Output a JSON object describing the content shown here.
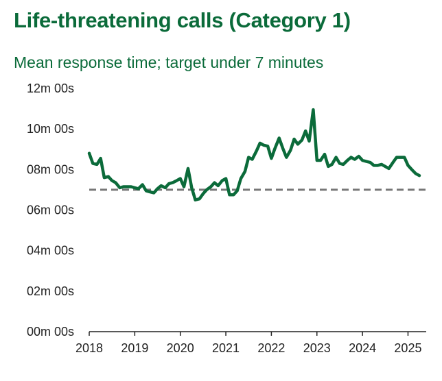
{
  "title": "Life-threatening calls (Category 1)",
  "subtitle": "Mean response time; target under 7 minutes",
  "colors": {
    "title": "#0b6b3a",
    "line": "#0b6b3a",
    "target": "#777777",
    "axis": "#222222"
  },
  "chart_data": {
    "type": "line",
    "title": "Life-threatening calls (Category 1)",
    "subtitle": "Mean response time; target under 7 minutes",
    "xlabel": "",
    "ylabel": "",
    "y_unit": "minutes",
    "ylim": [
      0,
      12
    ],
    "y_ticks": [
      {
        "value": 0,
        "label": "00m 00s"
      },
      {
        "value": 2,
        "label": "02m 00s"
      },
      {
        "value": 4,
        "label": "04m 00s"
      },
      {
        "value": 6,
        "label": "06m 00s"
      },
      {
        "value": 8,
        "label": "08m 00s"
      },
      {
        "value": 10,
        "label": "10m 00s"
      },
      {
        "value": 12,
        "label": "12m 00s"
      }
    ],
    "xlim": [
      2018,
      2025.4
    ],
    "x_ticks": [
      {
        "value": 2018,
        "label": "2018"
      },
      {
        "value": 2019,
        "label": "2019"
      },
      {
        "value": 2020,
        "label": "2020"
      },
      {
        "value": 2021,
        "label": "2021"
      },
      {
        "value": 2022,
        "label": "2022"
      },
      {
        "value": 2023,
        "label": "2023"
      },
      {
        "value": 2024,
        "label": "2024"
      },
      {
        "value": 2025,
        "label": "2025"
      }
    ],
    "grid": false,
    "target": 7,
    "series": [
      {
        "x": [
          2018.0,
          2018.08,
          2018.17,
          2018.25,
          2018.33,
          2018.42,
          2018.5,
          2018.58,
          2018.67,
          2018.75,
          2018.83,
          2018.92,
          2019.0,
          2019.08,
          2019.17,
          2019.25,
          2019.33,
          2019.42,
          2019.5,
          2019.58,
          2019.67,
          2019.75,
          2019.83,
          2019.92,
          2020.0,
          2020.08,
          2020.17,
          2020.25,
          2020.33,
          2020.42,
          2020.5,
          2020.58,
          2020.67,
          2020.75,
          2020.83,
          2020.92,
          2021.0,
          2021.08,
          2021.17,
          2021.25,
          2021.33,
          2021.42,
          2021.5,
          2021.58,
          2021.67,
          2021.75,
          2021.83,
          2021.92,
          2022.0,
          2022.08,
          2022.17,
          2022.25,
          2022.33,
          2022.42,
          2022.5,
          2022.58,
          2022.67,
          2022.75,
          2022.83,
          2022.92,
          2023.0,
          2023.08,
          2023.17,
          2023.25,
          2023.33,
          2023.42,
          2023.5,
          2023.58,
          2023.67,
          2023.75,
          2023.83,
          2023.92,
          2024.0,
          2024.08,
          2024.17,
          2024.25,
          2024.33,
          2024.42,
          2024.5,
          2024.58,
          2024.67,
          2024.75,
          2024.83,
          2024.92,
          2025.0,
          2025.08,
          2025.17,
          2025.25
        ],
        "y": [
          8.8,
          8.3,
          8.25,
          8.55,
          7.6,
          7.65,
          7.45,
          7.35,
          7.1,
          7.15,
          7.15,
          7.15,
          7.1,
          7.05,
          7.25,
          6.95,
          6.9,
          6.85,
          7.05,
          7.2,
          7.1,
          7.3,
          7.35,
          7.45,
          7.55,
          7.15,
          8.05,
          7.1,
          6.5,
          6.55,
          6.8,
          7.0,
          7.15,
          7.35,
          7.2,
          7.45,
          7.55,
          6.75,
          6.75,
          6.95,
          7.55,
          7.9,
          8.6,
          8.5,
          8.9,
          9.3,
          9.2,
          9.15,
          8.55,
          9.05,
          9.55,
          9.05,
          8.6,
          8.95,
          9.5,
          9.25,
          9.45,
          9.9,
          9.4,
          10.95,
          8.45,
          8.45,
          8.75,
          8.15,
          8.25,
          8.6,
          8.3,
          8.25,
          8.45,
          8.6,
          8.5,
          8.65,
          8.45,
          8.4,
          8.35,
          8.2,
          8.2,
          8.25,
          8.15,
          8.05,
          8.35,
          8.6,
          8.6,
          8.6,
          8.2,
          8.0,
          7.8,
          7.7
        ]
      }
    ]
  }
}
